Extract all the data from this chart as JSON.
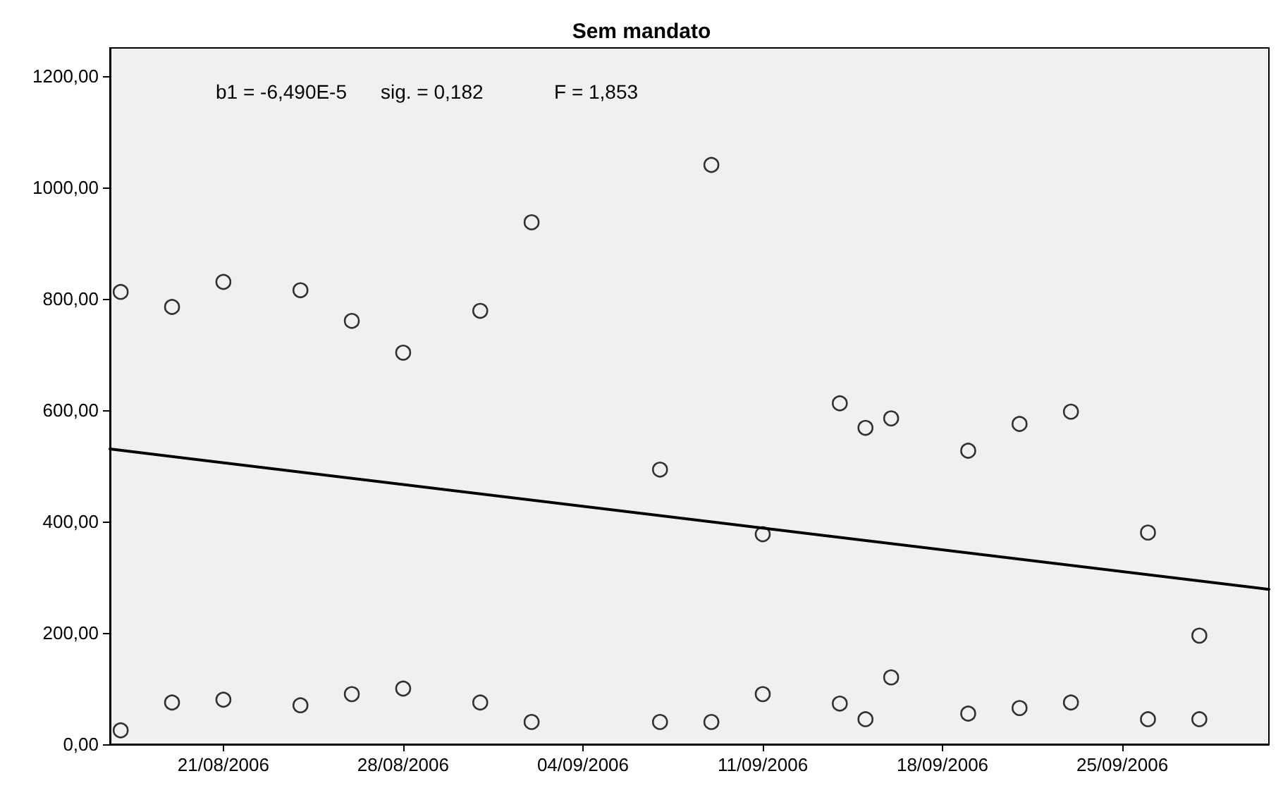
{
  "chart_data": {
    "type": "scatter",
    "title": "Sem mandato",
    "annotations": [
      "b1 = -6,490E-5",
      "sig. = 0,182",
      "F = 1,853"
    ],
    "xlim": [
      "2006-08-16T14:00",
      "2006-09-30T17:00"
    ],
    "xticks": [
      {
        "value": "2006-08-21",
        "label": "21/08/2006"
      },
      {
        "value": "2006-08-28",
        "label": "28/08/2006"
      },
      {
        "value": "2006-09-04",
        "label": "04/09/2006"
      },
      {
        "value": "2006-09-11",
        "label": "11/09/2006"
      },
      {
        "value": "2006-09-18",
        "label": "18/09/2006"
      },
      {
        "value": "2006-09-25",
        "label": "25/09/2006"
      }
    ],
    "ylim": [
      0,
      1250
    ],
    "yticks": [
      {
        "value": 0,
        "label": "0,00"
      },
      {
        "value": 200,
        "label": "200,00"
      },
      {
        "value": 400,
        "label": "400,00"
      },
      {
        "value": 600,
        "label": "600,00"
      },
      {
        "value": 800,
        "label": "800,00"
      },
      {
        "value": 1000,
        "label": "1000,00"
      },
      {
        "value": 1200,
        "label": "1200,00"
      }
    ],
    "grid": false,
    "marker": "circle",
    "series": [
      {
        "color": "#000000",
        "x": [
          "2006-08-17",
          "2006-08-19",
          "2006-08-21",
          "2006-08-24",
          "2006-08-26",
          "2006-08-28",
          "2006-08-31",
          "2006-09-02",
          "2006-09-07",
          "2006-09-09",
          "2006-09-11",
          "2006-09-14",
          "2006-09-15",
          "2006-09-16",
          "2006-09-19",
          "2006-09-21",
          "2006-09-23",
          "2006-09-26",
          "2006-09-28",
          "2006-08-17",
          "2006-08-19",
          "2006-08-21",
          "2006-08-24",
          "2006-08-26",
          "2006-08-28",
          "2006-08-31",
          "2006-09-02",
          "2006-09-07",
          "2006-09-09",
          "2006-09-11",
          "2006-09-14",
          "2006-09-15",
          "2006-09-16",
          "2006-09-19",
          "2006-09-21",
          "2006-09-23",
          "2006-09-26",
          "2006-09-28"
        ],
        "values": [
          812,
          785,
          830,
          815,
          760,
          703,
          778,
          937,
          493,
          1040,
          377,
          612,
          568,
          585,
          527,
          575,
          597,
          380,
          195,
          25,
          75,
          80,
          70,
          90,
          100,
          75,
          40,
          40,
          40,
          90,
          73,
          45,
          120,
          55,
          65,
          75,
          45,
          45
        ]
      },
      {
        "type": "line",
        "color": "#000000",
        "marker": "none",
        "line_style": "solid",
        "x": [
          "2006-08-16T14:00",
          "2006-09-30T17:00"
        ],
        "values": [
          530,
          278
        ]
      }
    ]
  }
}
